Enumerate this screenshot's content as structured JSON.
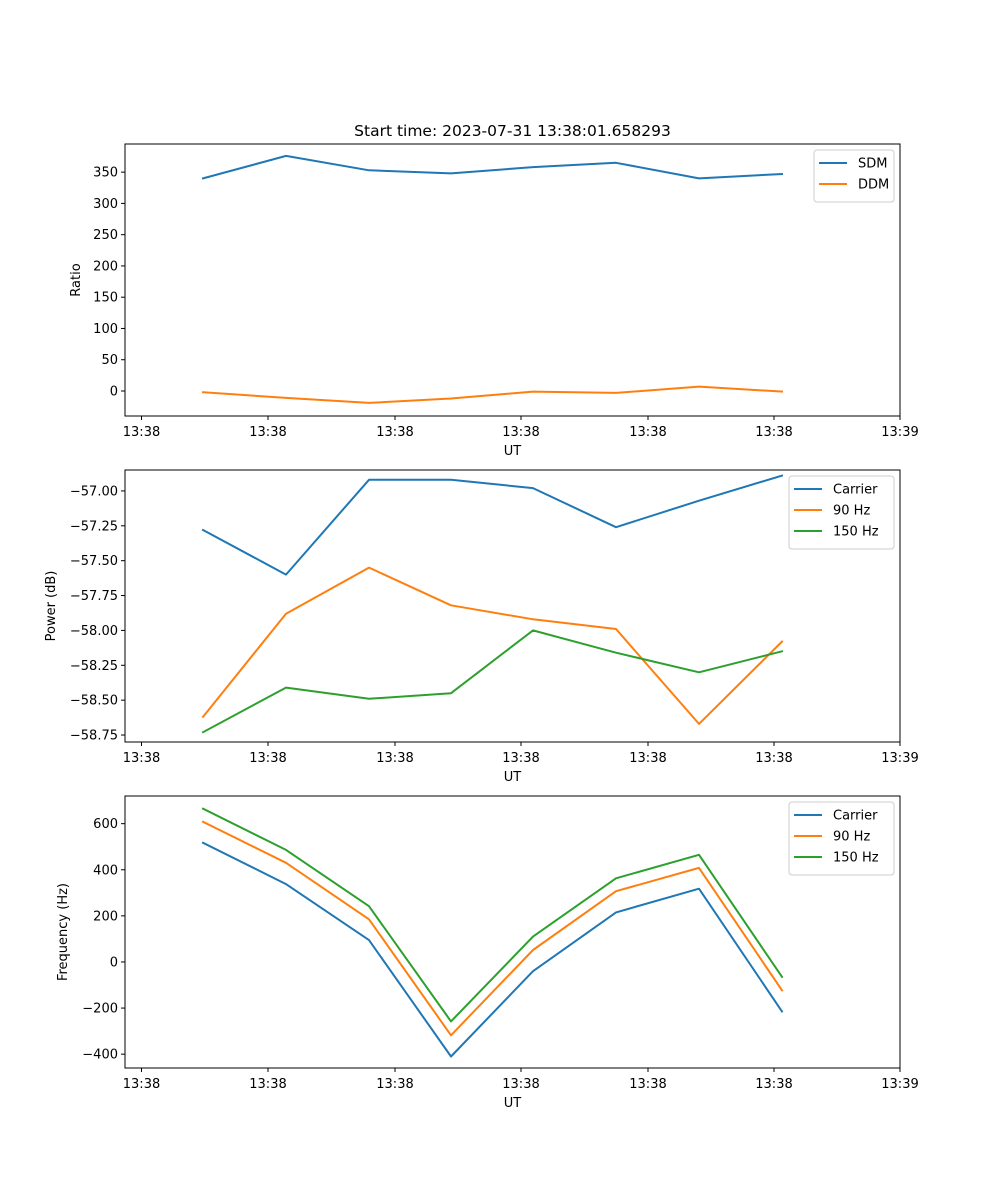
{
  "chart_data": [
    {
      "type": "line",
      "title": "Start time: 2023-07-31 13:38:01.658293",
      "xlabel": "UT",
      "ylabel": "Ratio",
      "x_tick_labels": [
        "13:38",
        "13:38",
        "13:38",
        "13:38",
        "13:38",
        "13:38",
        "13:39"
      ],
      "ylim": [
        -40,
        395
      ],
      "y_ticks": [
        0,
        50,
        100,
        150,
        200,
        250,
        300,
        350
      ],
      "legend_position": "top-right",
      "series": [
        {
          "name": "SDM",
          "color": "#1f77b4",
          "values": [
            340,
            376,
            353,
            348,
            358,
            365,
            340,
            347
          ]
        },
        {
          "name": "DDM",
          "color": "#ff7f0e",
          "values": [
            -2,
            -11,
            -19,
            -12,
            -1,
            -3,
            7,
            -1
          ]
        }
      ]
    },
    {
      "type": "line",
      "title": "",
      "xlabel": "UT",
      "ylabel": "Power (dB)",
      "x_tick_labels": [
        "13:38",
        "13:38",
        "13:38",
        "13:38",
        "13:38",
        "13:38",
        "13:39"
      ],
      "ylim": [
        -58.8,
        -56.85
      ],
      "y_ticks": [
        -58.75,
        -58.5,
        -58.25,
        -58.0,
        -57.75,
        -57.5,
        -57.25,
        -57.0
      ],
      "legend_position": "top-right",
      "series": [
        {
          "name": "Carrier",
          "color": "#1f77b4",
          "values": [
            -57.28,
            -57.6,
            -56.92,
            -56.92,
            -56.98,
            -57.26,
            -57.07,
            -56.89
          ]
        },
        {
          "name": "90 Hz",
          "color": "#ff7f0e",
          "values": [
            -58.62,
            -57.88,
            -57.55,
            -57.82,
            -57.92,
            -57.99,
            -58.67,
            -58.08
          ]
        },
        {
          "name": "150 Hz",
          "color": "#2ca02c",
          "values": [
            -58.73,
            -58.41,
            -58.49,
            -58.45,
            -58.0,
            -58.16,
            -58.3,
            -58.15
          ]
        }
      ]
    },
    {
      "type": "line",
      "title": "",
      "xlabel": "UT",
      "ylabel": "Frequency (Hz)",
      "x_tick_labels": [
        "13:38",
        "13:38",
        "13:38",
        "13:38",
        "13:38",
        "13:38",
        "13:39"
      ],
      "ylim": [
        -460,
        720
      ],
      "y_ticks": [
        -400,
        -200,
        0,
        200,
        400,
        600
      ],
      "legend_position": "top-right",
      "series": [
        {
          "name": "Carrier",
          "color": "#1f77b4",
          "values": [
            517,
            338,
            95,
            -410,
            -40,
            215,
            318,
            -215
          ]
        },
        {
          "name": "90 Hz",
          "color": "#ff7f0e",
          "values": [
            608,
            430,
            185,
            -318,
            52,
            307,
            408,
            -123
          ]
        },
        {
          "name": "150 Hz",
          "color": "#2ca02c",
          "values": [
            665,
            486,
            242,
            -258,
            110,
            363,
            465,
            -65
          ]
        }
      ]
    }
  ]
}
